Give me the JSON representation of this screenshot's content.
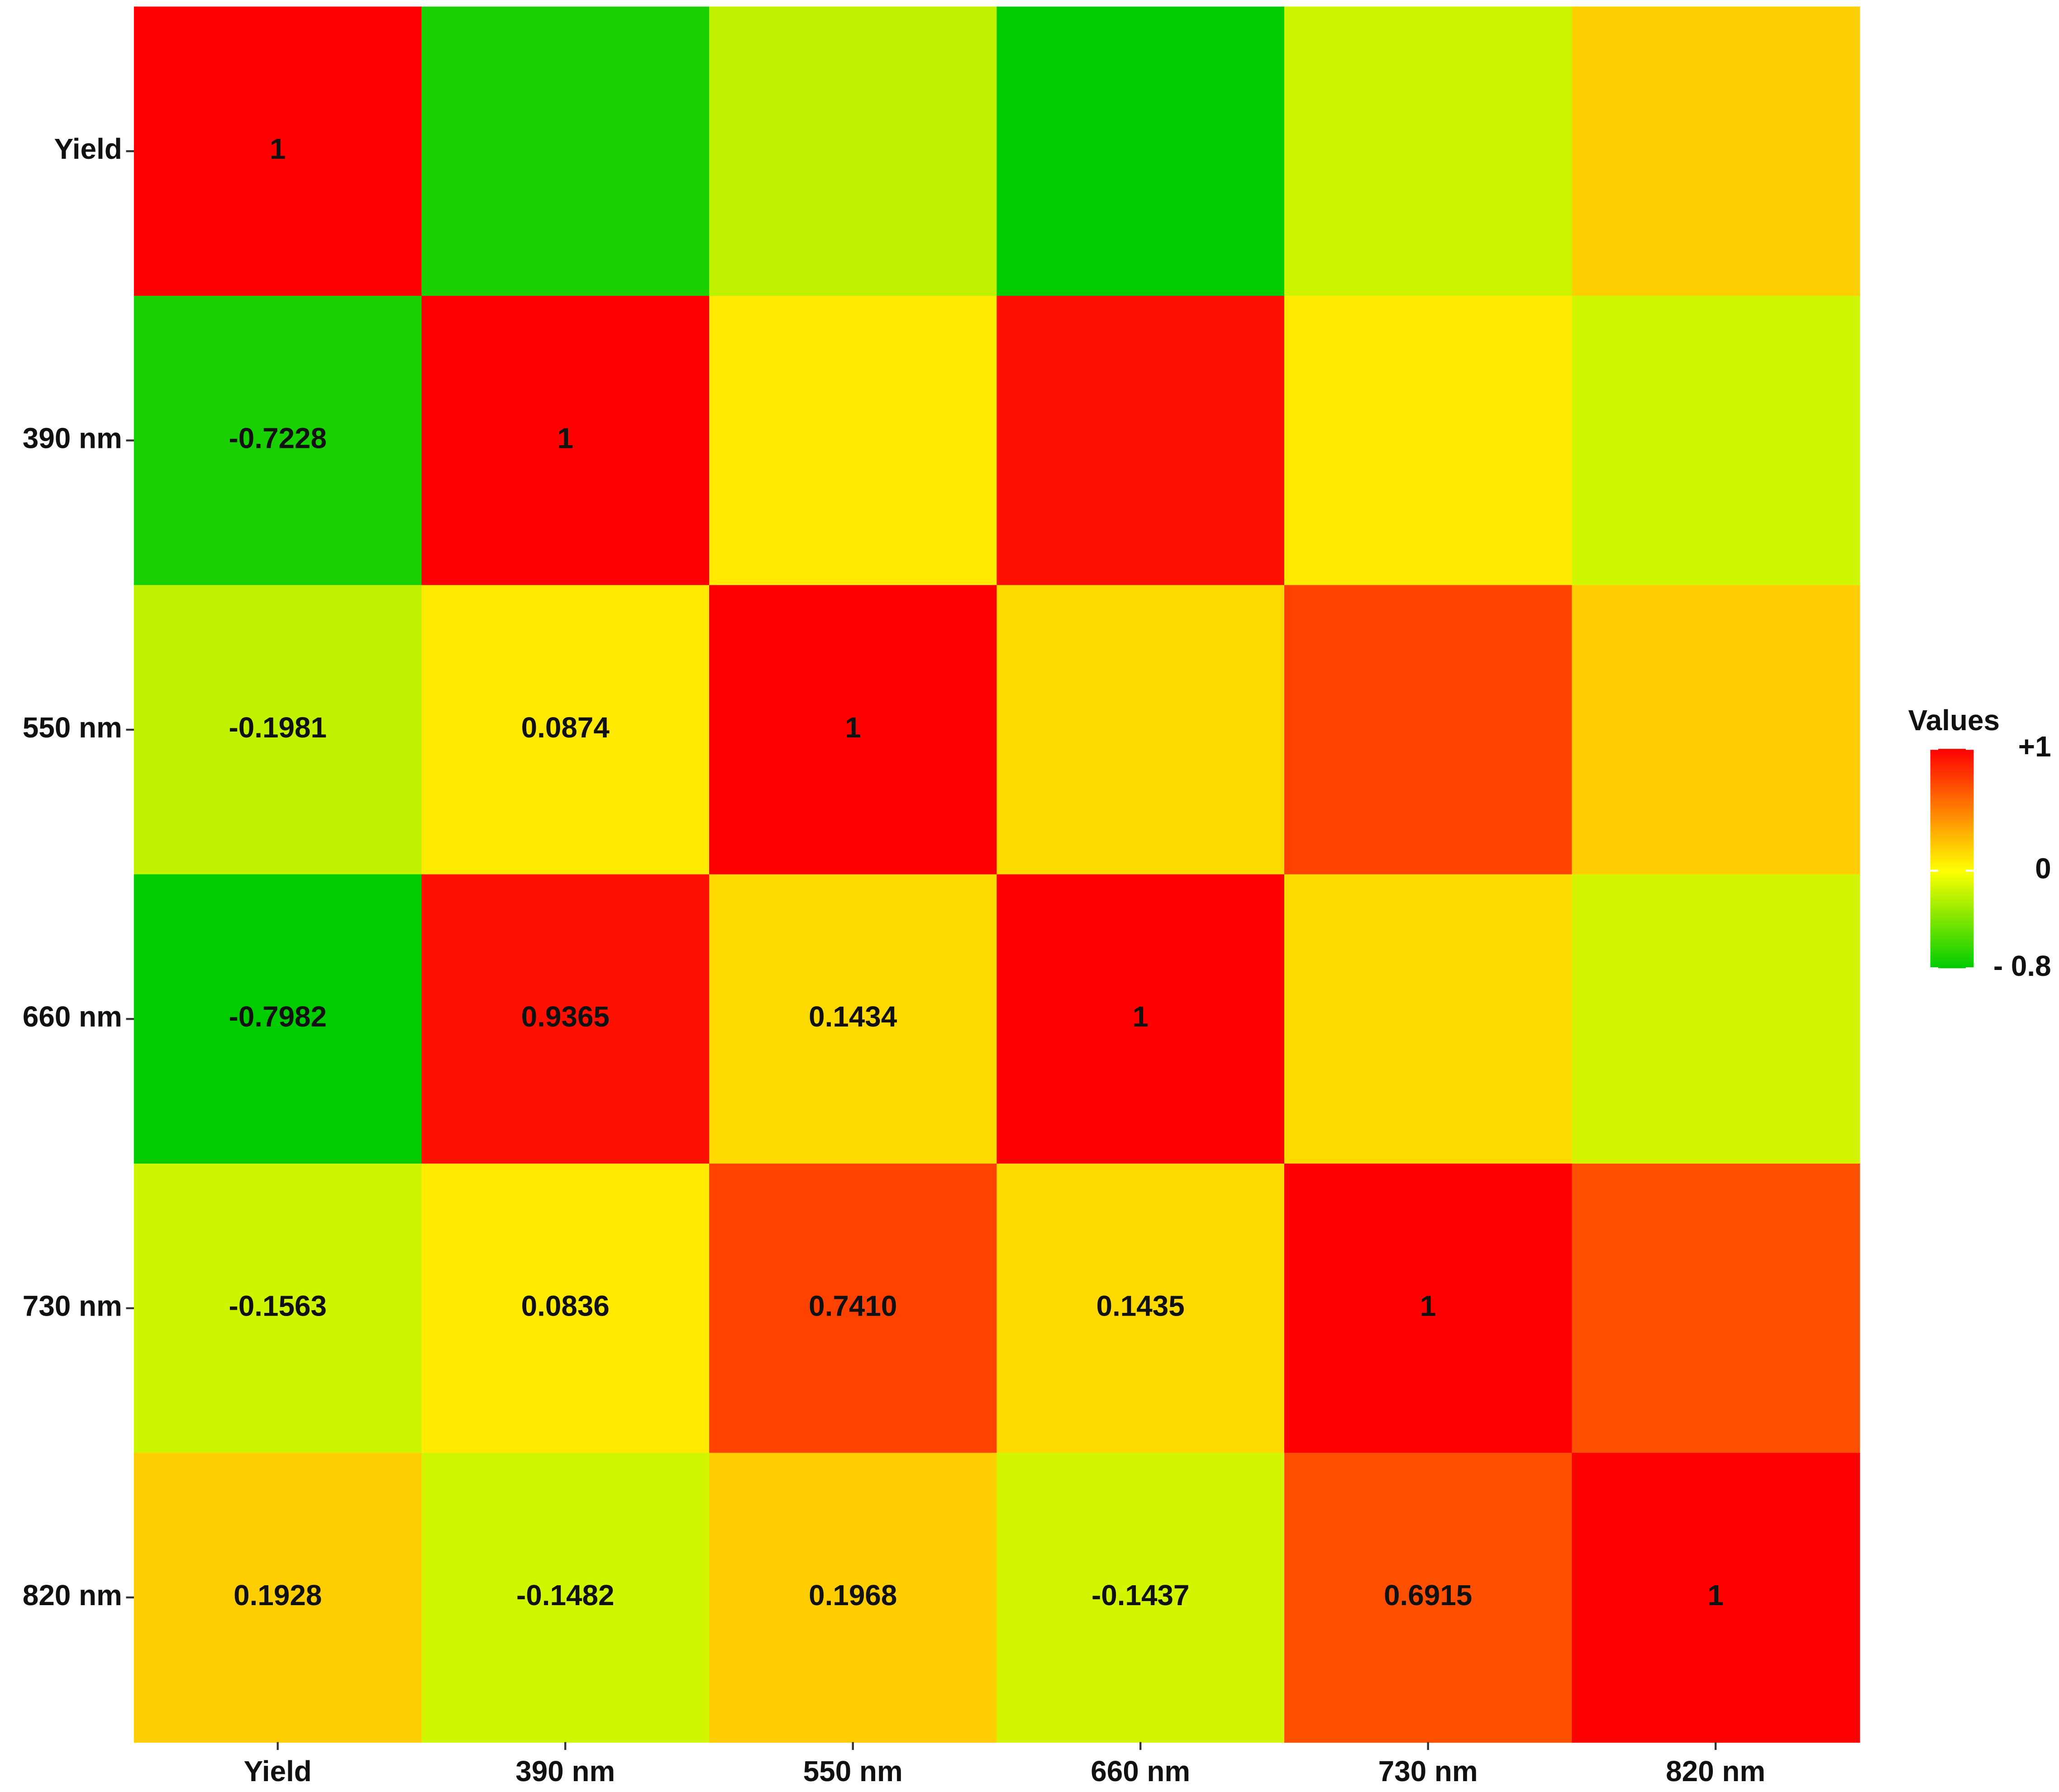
{
  "chart_data": {
    "type": "heatmap",
    "categories": [
      "Yield",
      "390 nm",
      "550 nm",
      "660 nm",
      "730 nm",
      "820 nm"
    ],
    "values": [
      [
        1,
        -0.7228,
        -0.1981,
        -0.7982,
        -0.1563,
        0.1928
      ],
      [
        -0.7228,
        1,
        0.0874,
        0.9365,
        0.0836,
        -0.1482
      ],
      [
        -0.1981,
        0.0874,
        1,
        0.1434,
        0.741,
        0.1968
      ],
      [
        -0.7982,
        0.9365,
        0.1434,
        1,
        0.1435,
        -0.1437
      ],
      [
        -0.1563,
        0.0836,
        0.741,
        0.1435,
        1,
        0.6915
      ],
      [
        0.1928,
        -0.1482,
        0.1968,
        -0.1437,
        0.6915,
        1
      ]
    ],
    "value_labels": [
      [
        "1",
        null,
        null,
        null,
        null,
        null
      ],
      [
        "-0.7228",
        "1",
        null,
        null,
        null,
        null
      ],
      [
        "-0.1981",
        "0.0874",
        "1",
        null,
        null,
        null
      ],
      [
        "-0.7982",
        "0.9365",
        "0.1434",
        "1",
        null,
        null
      ],
      [
        "-0.1563",
        "0.0836",
        "0.7410",
        "0.1435",
        "1",
        null
      ],
      [
        "0.1928",
        "-0.1482",
        "0.1968",
        "-0.1437",
        "0.6915",
        "1"
      ]
    ],
    "legend_title": "Values",
    "zlim": [
      -0.8,
      1
    ],
    "zticks": [
      {
        "value": 1,
        "label": "+1"
      },
      0,
      {
        "value": -0.8,
        "label": "- 0.8"
      }
    ],
    "colorscale": [
      {
        "value": -0.8,
        "color": "#00cc00"
      },
      {
        "value": 0,
        "color": "#ffff00"
      },
      {
        "value": 1,
        "color": "#ff0000"
      }
    ]
  }
}
